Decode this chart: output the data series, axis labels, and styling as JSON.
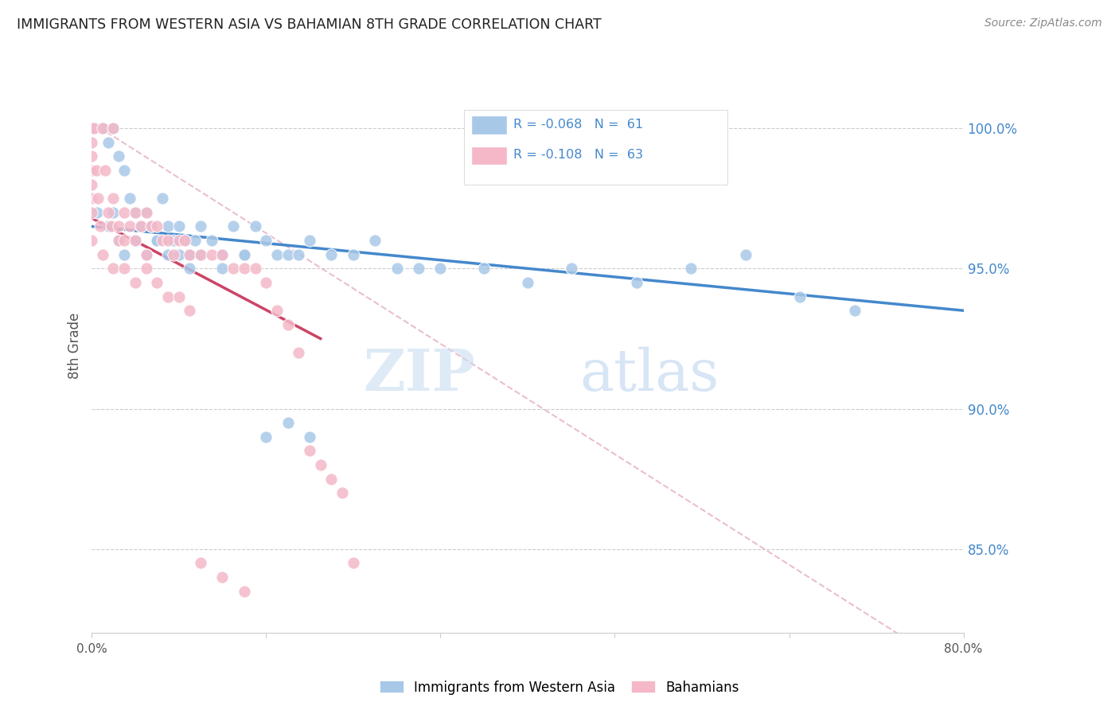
{
  "title": "IMMIGRANTS FROM WESTERN ASIA VS BAHAMIAN 8TH GRADE CORRELATION CHART",
  "source": "Source: ZipAtlas.com",
  "ylabel": "8th Grade",
  "yticks": [
    85.0,
    90.0,
    95.0,
    100.0
  ],
  "ytick_labels": [
    "85.0%",
    "90.0%",
    "95.0%",
    "100.0%"
  ],
  "xmin": 0.0,
  "xmax": 0.8,
  "ymin": 82.0,
  "ymax": 102.5,
  "color_blue": "#a8c8e8",
  "color_pink": "#f4b8c8",
  "color_blue_line": "#4488cc",
  "color_pink_line": "#cc4466",
  "color_dashed": "#e8b8c8",
  "watermark_zip": "ZIP",
  "watermark_atlas": "atlas",
  "blue_scatter_x": [
    0.003,
    0.01,
    0.015,
    0.02,
    0.025,
    0.03,
    0.035,
    0.04,
    0.045,
    0.05,
    0.055,
    0.06,
    0.065,
    0.07,
    0.075,
    0.08,
    0.085,
    0.09,
    0.095,
    0.1,
    0.11,
    0.12,
    0.13,
    0.14,
    0.15,
    0.16,
    0.17,
    0.18,
    0.19,
    0.2,
    0.22,
    0.24,
    0.26,
    0.28,
    0.3,
    0.32,
    0.36,
    0.4,
    0.44,
    0.5,
    0.55,
    0.6,
    0.65,
    0.7,
    0.005,
    0.015,
    0.02,
    0.025,
    0.03,
    0.04,
    0.05,
    0.06,
    0.07,
    0.08,
    0.09,
    0.1,
    0.12,
    0.14,
    0.16,
    0.18,
    0.2
  ],
  "blue_scatter_y": [
    100.0,
    100.0,
    99.5,
    100.0,
    99.0,
    98.5,
    97.5,
    97.0,
    96.5,
    97.0,
    96.5,
    96.0,
    97.5,
    96.5,
    96.0,
    96.5,
    96.0,
    95.5,
    96.0,
    96.5,
    96.0,
    95.5,
    96.5,
    95.5,
    96.5,
    96.0,
    95.5,
    95.5,
    95.5,
    96.0,
    95.5,
    95.5,
    96.0,
    95.0,
    95.0,
    95.0,
    95.0,
    94.5,
    95.0,
    94.5,
    95.0,
    95.5,
    94.0,
    93.5,
    97.0,
    96.5,
    97.0,
    96.0,
    95.5,
    96.0,
    95.5,
    96.0,
    95.5,
    95.5,
    95.0,
    95.5,
    95.0,
    95.5,
    89.0,
    89.5,
    89.0
  ],
  "pink_scatter_x": [
    0.0,
    0.0,
    0.0,
    0.0,
    0.0,
    0.0,
    0.0,
    0.002,
    0.004,
    0.006,
    0.008,
    0.01,
    0.012,
    0.015,
    0.018,
    0.02,
    0.02,
    0.025,
    0.025,
    0.03,
    0.03,
    0.035,
    0.04,
    0.04,
    0.045,
    0.05,
    0.05,
    0.055,
    0.06,
    0.065,
    0.07,
    0.075,
    0.08,
    0.085,
    0.09,
    0.1,
    0.11,
    0.12,
    0.13,
    0.14,
    0.15,
    0.16,
    0.17,
    0.18,
    0.19,
    0.2,
    0.21,
    0.22,
    0.23,
    0.24,
    0.0,
    0.01,
    0.02,
    0.03,
    0.04,
    0.05,
    0.06,
    0.07,
    0.08,
    0.09,
    0.1,
    0.12,
    0.14
  ],
  "pink_scatter_y": [
    100.0,
    99.5,
    99.0,
    98.5,
    98.0,
    97.5,
    97.0,
    100.0,
    98.5,
    97.5,
    96.5,
    100.0,
    98.5,
    97.0,
    96.5,
    100.0,
    97.5,
    96.5,
    96.0,
    97.0,
    96.0,
    96.5,
    97.0,
    96.0,
    96.5,
    97.0,
    95.5,
    96.5,
    96.5,
    96.0,
    96.0,
    95.5,
    96.0,
    96.0,
    95.5,
    95.5,
    95.5,
    95.5,
    95.0,
    95.0,
    95.0,
    94.5,
    93.5,
    93.0,
    92.0,
    88.5,
    88.0,
    87.5,
    87.0,
    84.5,
    96.0,
    95.5,
    95.0,
    95.0,
    94.5,
    95.0,
    94.5,
    94.0,
    94.0,
    93.5,
    84.5,
    84.0,
    83.5
  ],
  "blue_line_x": [
    0.0,
    0.8
  ],
  "blue_line_y": [
    96.5,
    93.5
  ],
  "pink_line_x": [
    0.0,
    0.21
  ],
  "pink_line_y": [
    96.8,
    92.5
  ],
  "dashed_line_x": [
    0.0,
    0.8
  ],
  "dashed_line_y": [
    100.2,
    80.5
  ]
}
